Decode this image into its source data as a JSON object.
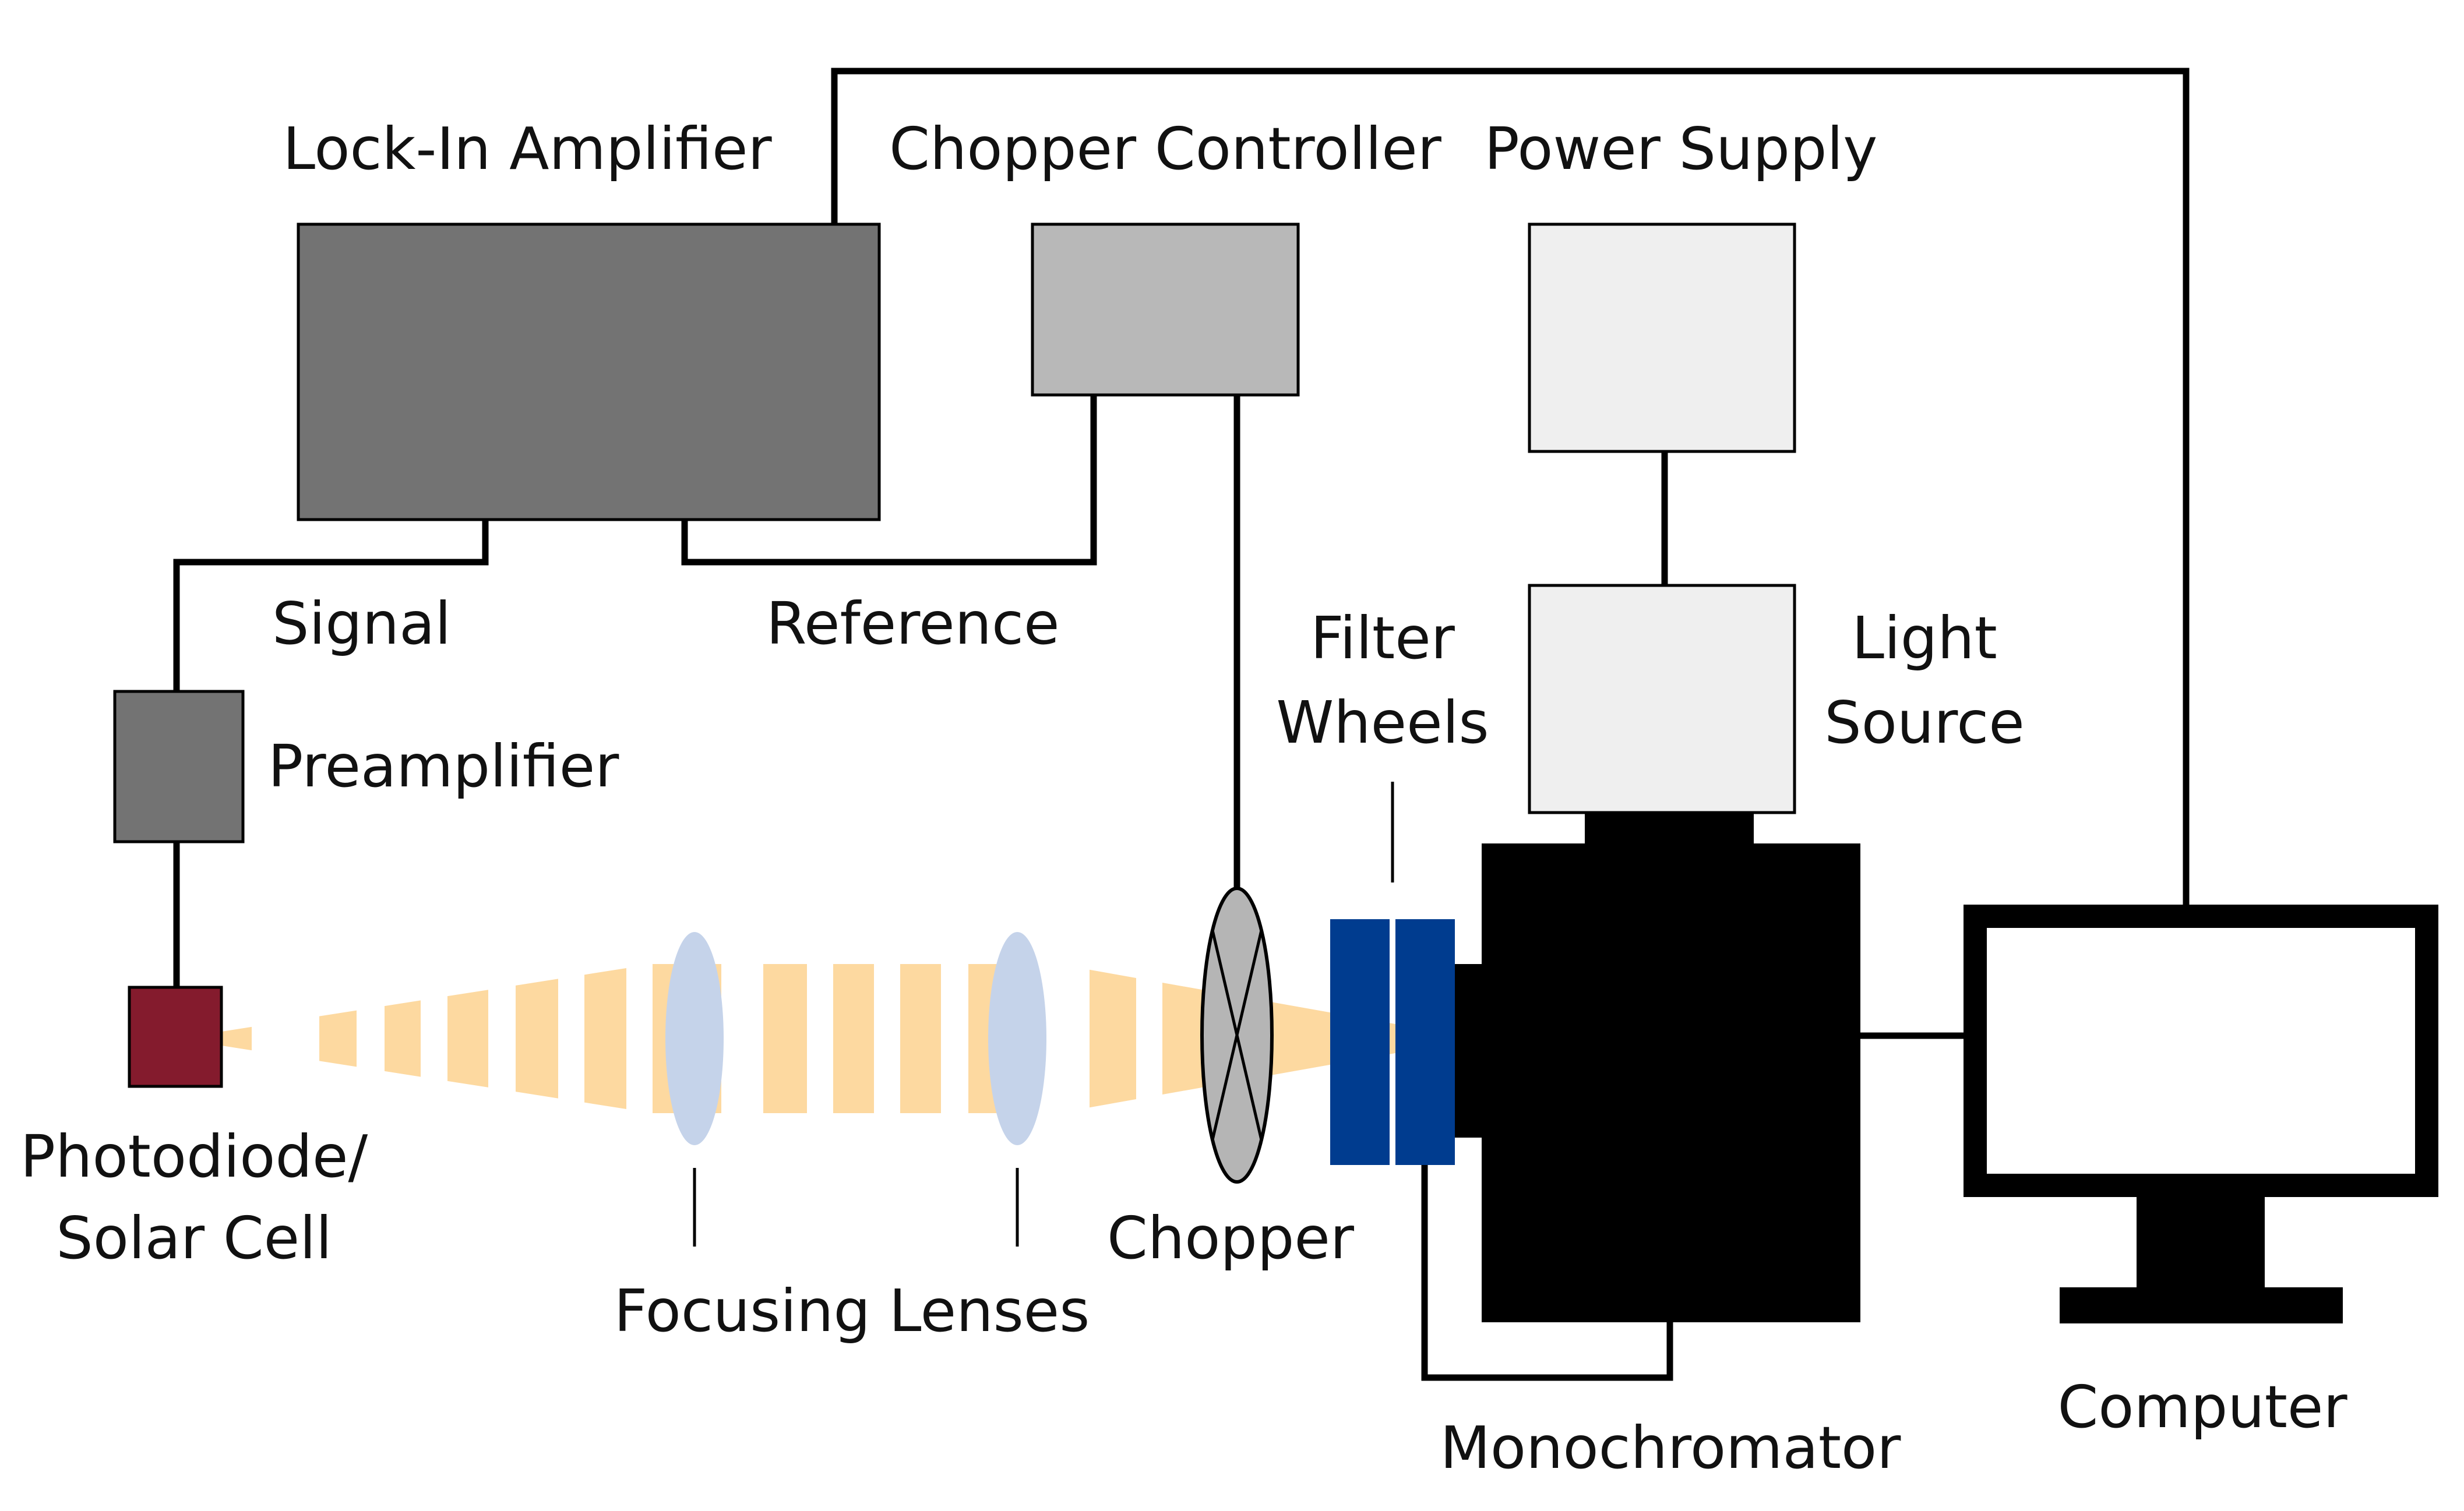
{
  "labels": {
    "lock_in_amplifier": "Lock-In Amplifier",
    "chopper_controller": "Chopper Controller",
    "power_supply": "Power Supply",
    "signal": "Signal",
    "reference": "Reference",
    "filter_line1": "Filter",
    "filter_line2": "Wheels",
    "light_line1": "Light",
    "light_line2": "Source",
    "preamplifier": "Preamplifier",
    "photodiode_line1": "Photodiode/",
    "photodiode_line2": "Solar Cell",
    "focusing_lenses": "Focusing Lenses",
    "chopper": "Chopper",
    "monochromator": "Monochromator",
    "computer": "Computer"
  },
  "colors": {
    "lock_in_amplifier": "#737373",
    "chopper_controller": "#b8b8b8",
    "power_supply": "#efefef",
    "light_source": "#efefef",
    "preamplifier": "#737373",
    "photodiode": "#841b2d",
    "beam": "#fdd9a0",
    "lens": "#c5d3ea",
    "chopper": "#b5b5b5",
    "filter_wheels": "#003c8f",
    "monochromator": "#000000",
    "computer": "#000000"
  }
}
